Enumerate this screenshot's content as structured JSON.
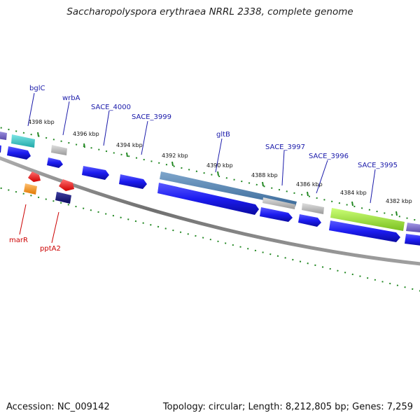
{
  "title": "Saccharopolyspora erythraea NRRL 2338, complete genome",
  "accession": "Accession: NC_009142",
  "summary": "Topology: circular; Length: 8,212,805 bp; Genes: 7,259",
  "colors": {
    "forward_label": "#1a1aaa",
    "reverse_label": "#cc0000",
    "tick": "#228822",
    "backbone": "#7f7f7f",
    "cds_blue": "#1c1cf0"
  },
  "position_ticks": [
    "4398 kbp",
    "4396 kbp",
    "4394 kbp",
    "4392 kbp",
    "4390 kbp",
    "4388 kbp",
    "4386 kbp",
    "4384 kbp",
    "4382 kbp"
  ],
  "forward_labels": [
    "bglC",
    "wrbA",
    "SACE_4000",
    "SACE_3999",
    "gltB",
    "SACE_3997",
    "SACE_3996",
    "SACE_3995"
  ],
  "reverse_labels": [
    "marR",
    "pptA2"
  ],
  "features": [
    {
      "track": "outer",
      "type": "other",
      "color": "#7766cc"
    },
    {
      "track": "outer",
      "type": "rRNA",
      "color": "#33cccc"
    },
    {
      "track": "outer",
      "type": "misc",
      "color": "#bbbbbb"
    },
    {
      "track": "outer",
      "type": "gene",
      "color": "#4d80b3"
    },
    {
      "track": "outer",
      "type": "misc",
      "color": "#bbbbbb"
    },
    {
      "track": "outer",
      "type": "misc",
      "color": "#bbbbbb"
    },
    {
      "track": "outer",
      "type": "gene",
      "color": "#99e633"
    },
    {
      "track": "outer",
      "type": "other",
      "color": "#7766cc"
    },
    {
      "track": "inner",
      "type": "tRNA",
      "color": "#ff2020"
    },
    {
      "track": "inner",
      "type": "tRNA",
      "color": "#ff2020"
    },
    {
      "track": "inner",
      "type": "misc",
      "color": "#ff9922"
    },
    {
      "track": "inner",
      "type": "cds",
      "color": "#101080"
    }
  ]
}
